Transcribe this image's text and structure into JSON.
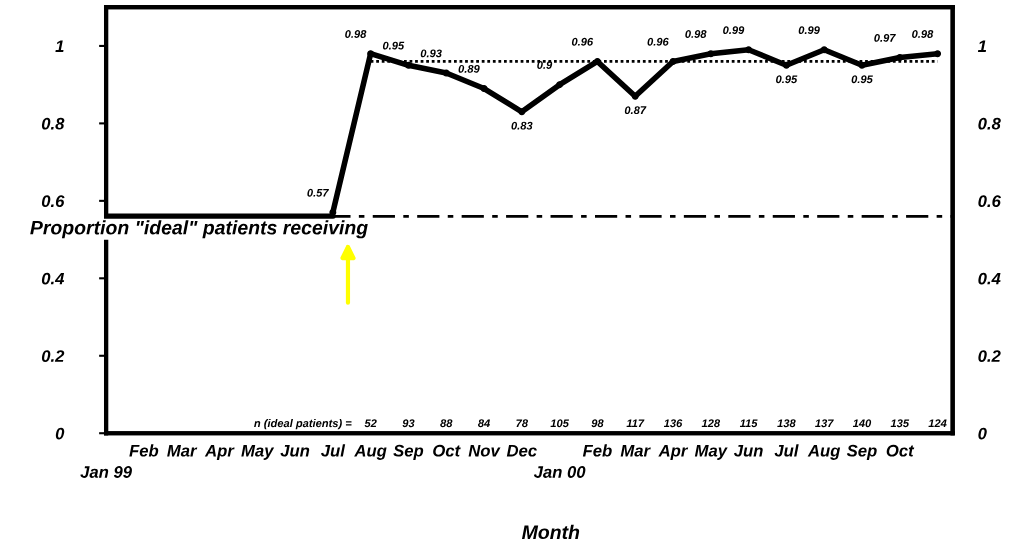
{
  "chart_data": {
    "type": "line",
    "ylabel": "Proportion \"ideal\" patients receiving",
    "xlabel": "Month",
    "categories": [
      "Jan 99",
      "Feb",
      "Mar",
      "Apr",
      "May",
      "Jun",
      "Jul",
      "Aug",
      "Sep",
      "Oct",
      "Nov",
      "Dec",
      "Jan 00",
      "Feb",
      "Mar",
      "Apr",
      "May",
      "Jun",
      "Jul",
      "Aug",
      "Sep",
      "Oct",
      null
    ],
    "series": [
      {
        "color": "#000000",
        "line_style": "solid",
        "marker": "none",
        "values": [
          0.56,
          0.56,
          0.56,
          0.56,
          0.56,
          0.56,
          0.56,
          null,
          null,
          null,
          null,
          null,
          null,
          null,
          null,
          null,
          null,
          null,
          null,
          null,
          null,
          null,
          null
        ]
      },
      {
        "color": "#000000",
        "line_style": "dotted",
        "marker": "none",
        "values": [
          null,
          null,
          null,
          null,
          null,
          null,
          null,
          0.96,
          0.96,
          0.96,
          0.96,
          0.96,
          0.96,
          0.96,
          0.96,
          0.96,
          0.96,
          0.96,
          0.96,
          0.96,
          0.96,
          0.96,
          0.96
        ]
      },
      {
        "color": "#000000",
        "line_style": "solid",
        "marker": "circle",
        "values": [
          null,
          null,
          null,
          null,
          null,
          null,
          0.57,
          0.98,
          0.95,
          0.93,
          0.89,
          0.83,
          0.9,
          0.96,
          0.87,
          0.96,
          0.98,
          0.99,
          0.95,
          0.99,
          0.95,
          0.97,
          0.98
        ],
        "value_labels": [
          null,
          null,
          null,
          null,
          null,
          null,
          "0.57",
          "0.98",
          "0.95",
          "0.93",
          "0.89",
          "0.83",
          "0.9",
          "0.96",
          "0.87",
          "0.96",
          "0.98",
          "0.99",
          "0.95",
          "0.99",
          "0.95",
          "0.97",
          "0.98"
        ]
      }
    ],
    "ref_lines": [
      {
        "axis": "y",
        "value": 0.56,
        "line_style": "dashed",
        "color": "#000000"
      }
    ],
    "annotations": [
      "n (ideal patients) =",
      "52",
      "93",
      "88",
      "84",
      "78",
      "105",
      "98",
      "117",
      "136",
      "128",
      "115",
      "138",
      "137",
      "140",
      "135",
      "124"
    ],
    "ylim": [
      0,
      1.1
    ],
    "yticks": [
      0,
      0.2,
      0.4,
      0.6,
      0.8,
      1
    ],
    "y2lim": [
      0,
      1.1
    ],
    "y2ticks": [
      0,
      0.2,
      0.4,
      0.6,
      0.8,
      1
    ],
    "grid": false,
    "legend": false
  }
}
